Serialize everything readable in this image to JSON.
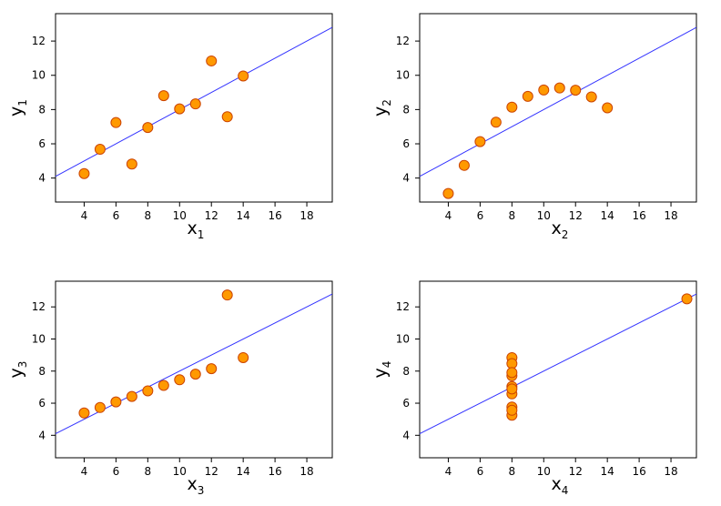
{
  "chart_data": [
    {
      "type": "scatter",
      "xlabel": "x",
      "xlabel_sub": "1",
      "ylabel": "y",
      "ylabel_sub": "1",
      "xlim": [
        2.2,
        19.6
      ],
      "ylim": [
        2.6,
        13.6
      ],
      "xticks": [
        4,
        6,
        8,
        10,
        12,
        14,
        16,
        18
      ],
      "yticks": [
        4,
        6,
        8,
        10,
        12
      ],
      "x": [
        10,
        8,
        13,
        9,
        11,
        14,
        6,
        4,
        12,
        7,
        5
      ],
      "y": [
        8.04,
        6.95,
        7.58,
        8.81,
        8.33,
        9.96,
        7.24,
        4.26,
        10.84,
        4.82,
        5.68
      ],
      "fit_line": {
        "intercept": 3.0,
        "slope": 0.5
      },
      "grid": false
    },
    {
      "type": "scatter",
      "xlabel": "x",
      "xlabel_sub": "2",
      "ylabel": "y",
      "ylabel_sub": "2",
      "xlim": [
        2.2,
        19.6
      ],
      "ylim": [
        2.6,
        13.6
      ],
      "xticks": [
        4,
        6,
        8,
        10,
        12,
        14,
        16,
        18
      ],
      "yticks": [
        4,
        6,
        8,
        10,
        12
      ],
      "x": [
        10,
        8,
        13,
        9,
        11,
        14,
        6,
        4,
        12,
        7,
        5
      ],
      "y": [
        9.14,
        8.14,
        8.74,
        8.77,
        9.26,
        8.1,
        6.13,
        3.1,
        9.13,
        7.26,
        4.74
      ],
      "fit_line": {
        "intercept": 3.0,
        "slope": 0.5
      },
      "grid": false
    },
    {
      "type": "scatter",
      "xlabel": "x",
      "xlabel_sub": "3",
      "ylabel": "y",
      "ylabel_sub": "3",
      "xlim": [
        2.2,
        19.6
      ],
      "ylim": [
        2.6,
        13.6
      ],
      "xticks": [
        4,
        6,
        8,
        10,
        12,
        14,
        16,
        18
      ],
      "yticks": [
        4,
        6,
        8,
        10,
        12
      ],
      "x": [
        10,
        8,
        13,
        9,
        11,
        14,
        6,
        4,
        12,
        7,
        5
      ],
      "y": [
        7.46,
        6.77,
        12.74,
        7.11,
        7.81,
        8.84,
        6.08,
        5.39,
        8.15,
        6.42,
        5.73
      ],
      "fit_line": {
        "intercept": 3.0,
        "slope": 0.5
      },
      "grid": false
    },
    {
      "type": "scatter",
      "xlabel": "x",
      "xlabel_sub": "4",
      "ylabel": "y",
      "ylabel_sub": "4",
      "xlim": [
        2.2,
        19.6
      ],
      "ylim": [
        2.6,
        13.6
      ],
      "xticks": [
        4,
        6,
        8,
        10,
        12,
        14,
        16,
        18
      ],
      "yticks": [
        4,
        6,
        8,
        10,
        12
      ],
      "x": [
        8,
        8,
        8,
        8,
        8,
        8,
        8,
        19,
        8,
        8,
        8
      ],
      "y": [
        6.58,
        5.76,
        7.71,
        8.84,
        8.47,
        7.04,
        5.25,
        12.5,
        5.56,
        7.91,
        6.89
      ],
      "fit_line": {
        "intercept": 3.0,
        "slope": 0.5
      },
      "grid": false
    }
  ],
  "colors": {
    "point_fill": "#ff9900",
    "point_stroke": "#cc4400",
    "fit_line": "#3333ff",
    "axis": "#000000"
  }
}
